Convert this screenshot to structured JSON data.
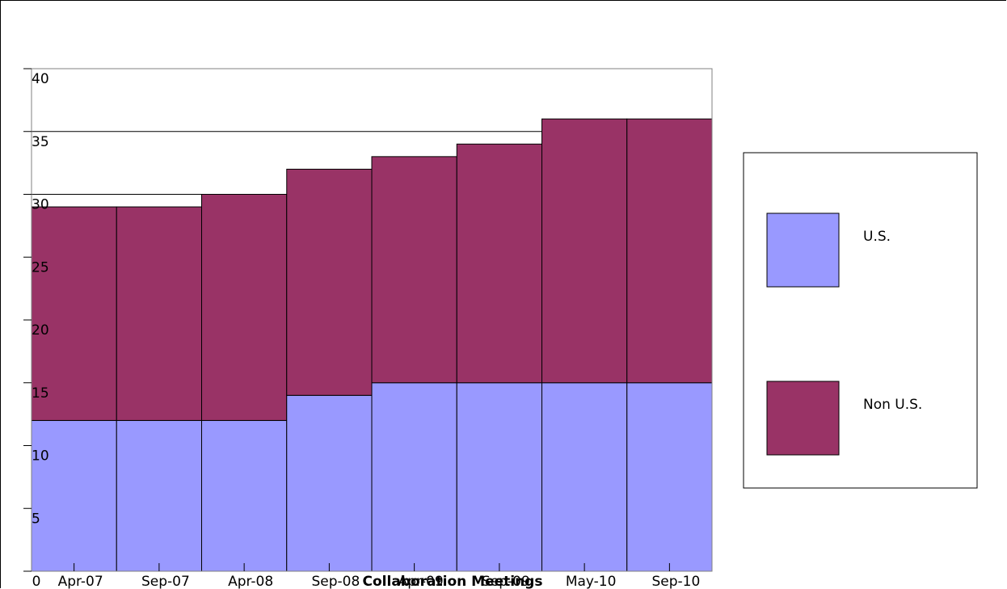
{
  "chart_data": {
    "type": "bar",
    "stacked": true,
    "title": "",
    "xlabel": "Collaboration Meetings",
    "ylabel": "",
    "categories": [
      "Apr-07",
      "Sep-07",
      "Apr-08",
      "Sep-08",
      "Apr-09",
      "Sep-09",
      "May-10",
      "Sep-10"
    ],
    "series": [
      {
        "name": "U.S.",
        "color": "#9999ff",
        "values": [
          12,
          12,
          12,
          14,
          15,
          15,
          15,
          15
        ]
      },
      {
        "name": "Non U.S.",
        "color": "#993366",
        "values": [
          17,
          17,
          18,
          18,
          18,
          19,
          21,
          21
        ]
      }
    ],
    "ylim": [
      0,
      40
    ],
    "yticks": [
      0,
      5,
      10,
      15,
      20,
      25,
      30,
      35,
      40
    ],
    "grid": true,
    "legend": "right"
  }
}
